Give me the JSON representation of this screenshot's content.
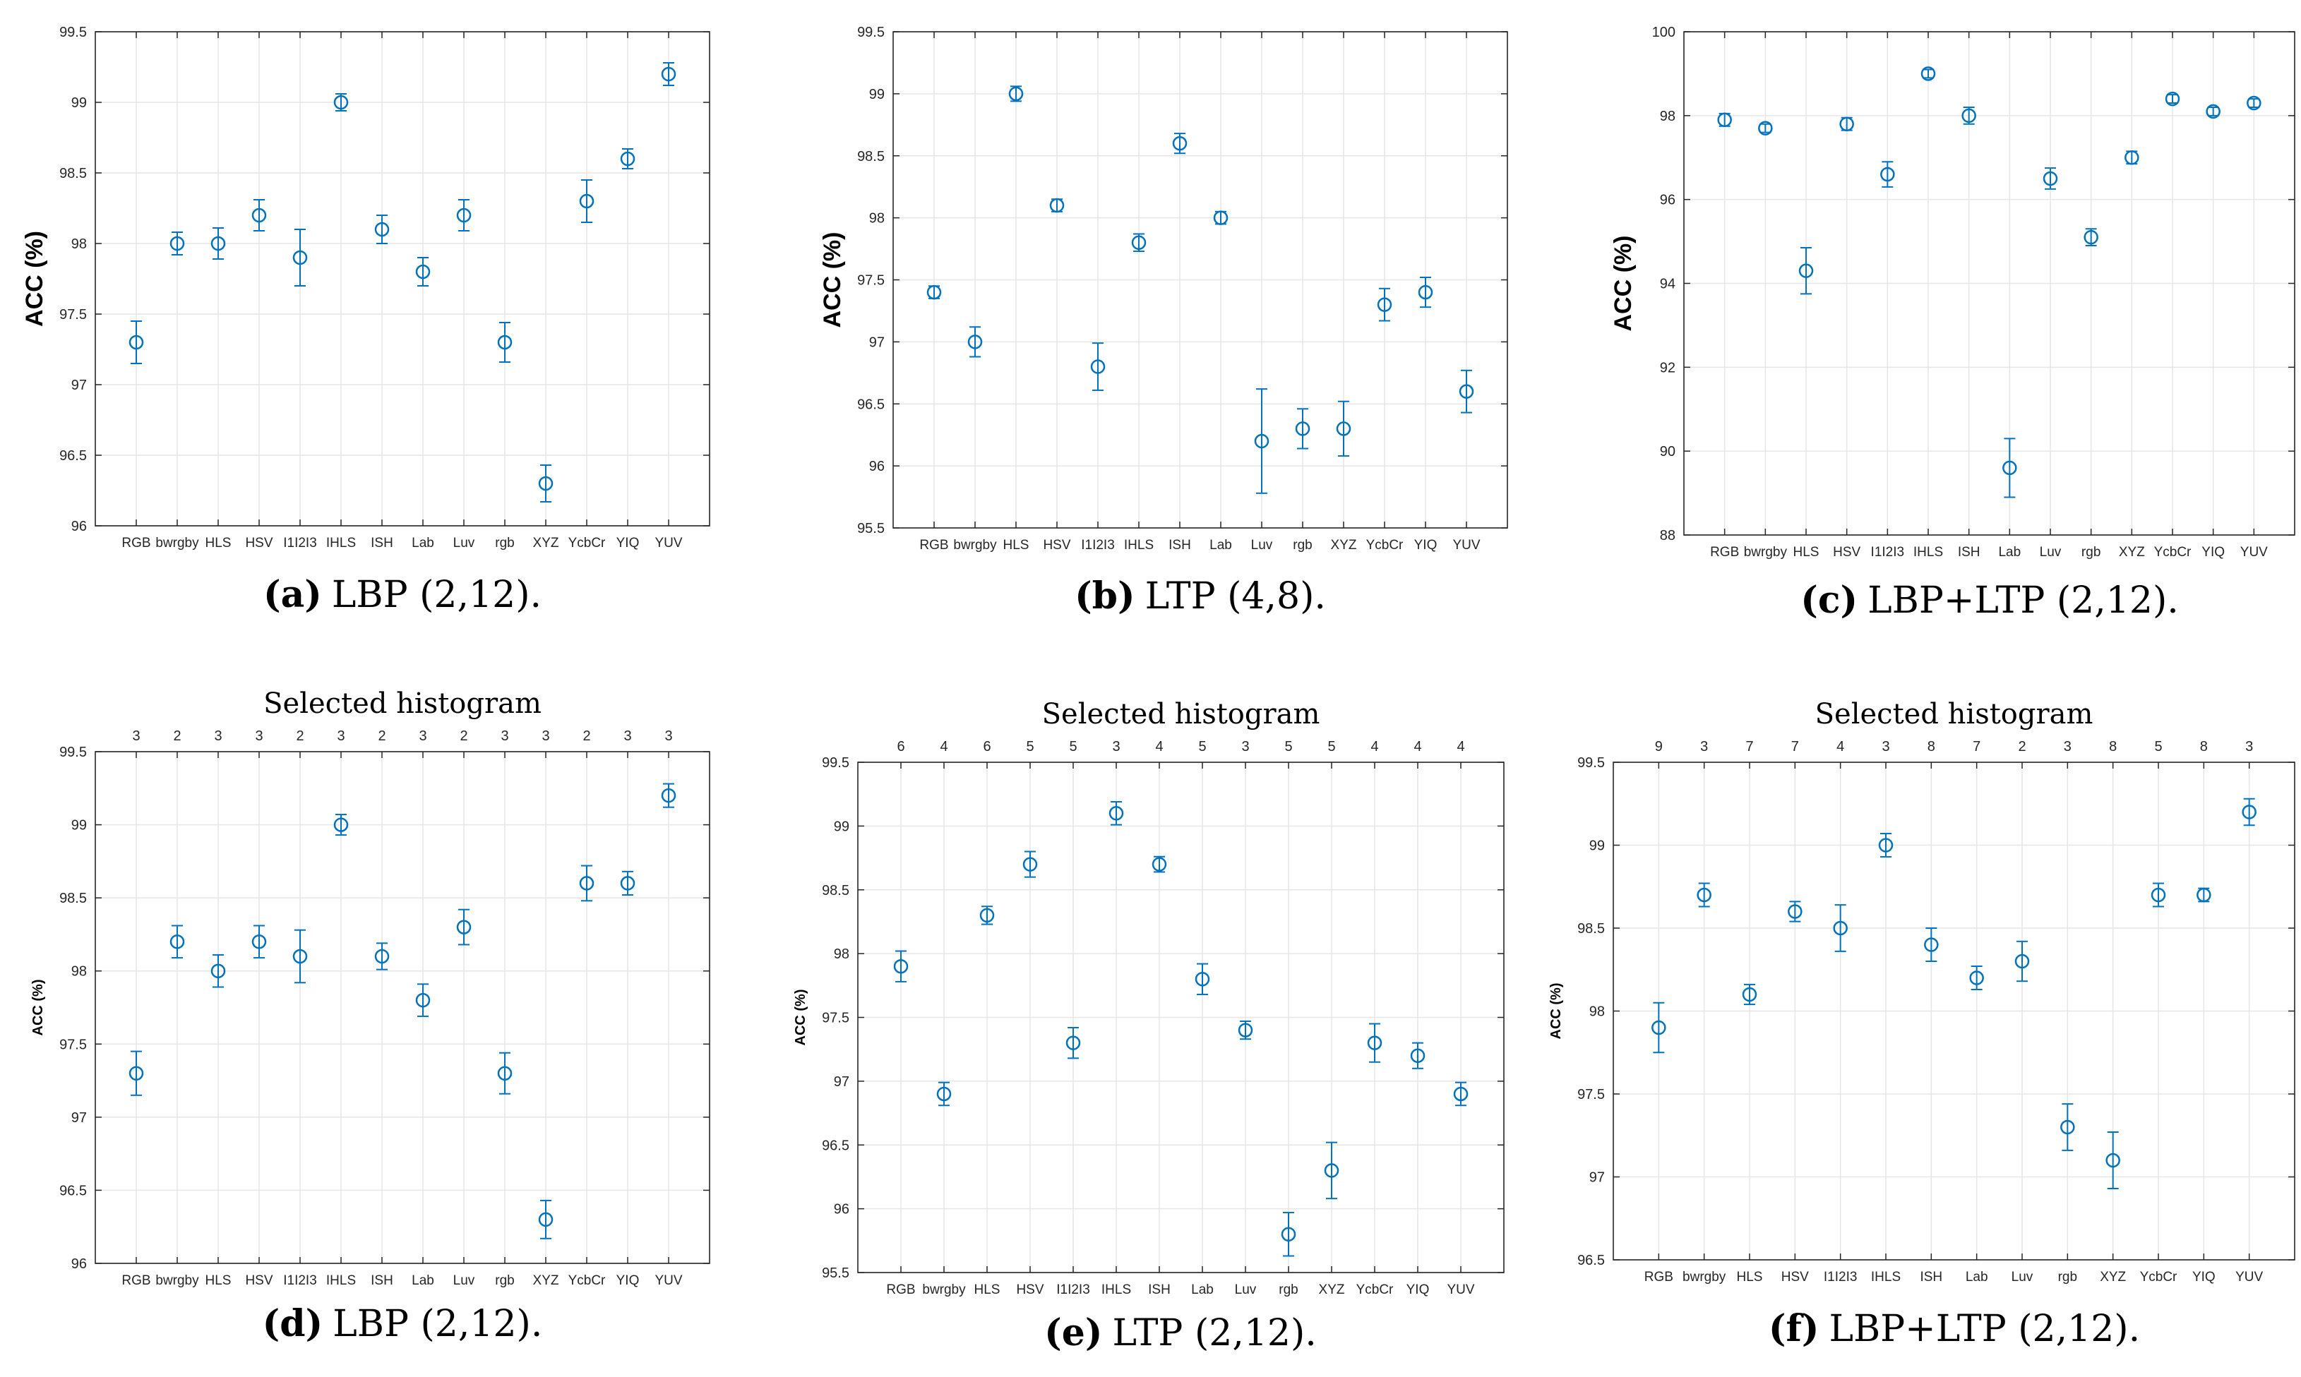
{
  "panels": [
    {
      "label": "(a)",
      "caption": "LBP (2,12).",
      "title": "",
      "chart_data": {
        "type": "scatter",
        "ylabel": "ACC (%)",
        "ylim": [
          96,
          99.5
        ],
        "yticks": [
          96,
          96.5,
          97,
          97.5,
          98,
          98.5,
          99,
          99.5
        ],
        "ytick_labels": [
          "96",
          "96.5",
          "97",
          "97.5",
          "98",
          "98.5",
          "99",
          "99.5"
        ],
        "categories": [
          "RGB",
          "bwrgby",
          "HLS",
          "HSV",
          "I1I2I3",
          "IHLS",
          "ISH",
          "Lab",
          "Luv",
          "rgb",
          "XYZ",
          "YcbCr",
          "YIQ",
          "YUV"
        ],
        "values": [
          97.3,
          98.0,
          98.0,
          98.2,
          97.9,
          99.0,
          98.1,
          97.8,
          98.2,
          97.3,
          96.3,
          98.3,
          98.6,
          99.2
        ],
        "errors": [
          0.15,
          0.08,
          0.11,
          0.11,
          0.2,
          0.06,
          0.1,
          0.1,
          0.11,
          0.14,
          0.13,
          0.15,
          0.07,
          0.08
        ],
        "top_labels": []
      }
    },
    {
      "label": "(b)",
      "caption": "LTP (4,8).",
      "title": "",
      "chart_data": {
        "type": "scatter",
        "ylabel": "ACC (%)",
        "ylim": [
          95.5,
          99.5
        ],
        "yticks": [
          95.5,
          96,
          96.5,
          97,
          97.5,
          98,
          98.5,
          99,
          99.5
        ],
        "ytick_labels": [
          "95.5",
          "96",
          "96.5",
          "97",
          "97.5",
          "98",
          "98.5",
          "99",
          "99.5"
        ],
        "categories": [
          "RGB",
          "bwrgby",
          "HLS",
          "HSV",
          "I1I2I3",
          "IHLS",
          "ISH",
          "Lab",
          "Luv",
          "rgb",
          "XYZ",
          "YcbCr",
          "YIQ",
          "YUV"
        ],
        "values": [
          97.4,
          97.0,
          99.0,
          98.1,
          96.8,
          97.8,
          98.6,
          98.0,
          96.2,
          96.3,
          96.3,
          97.3,
          97.4,
          96.6
        ],
        "errors": [
          0.05,
          0.12,
          0.06,
          0.05,
          0.19,
          0.07,
          0.08,
          0.05,
          0.42,
          0.16,
          0.22,
          0.13,
          0.12,
          0.17
        ],
        "top_labels": []
      }
    },
    {
      "label": "(c)",
      "caption": "LBP+LTP (2,12).",
      "title": "",
      "chart_data": {
        "type": "scatter",
        "ylabel": "ACC (%)",
        "ylim": [
          88,
          100
        ],
        "yticks": [
          88,
          90,
          92,
          94,
          96,
          98,
          100
        ],
        "ytick_labels": [
          "88",
          "90",
          "92",
          "94",
          "96",
          "98",
          "100"
        ],
        "categories": [
          "RGB",
          "bwrgby",
          "HLS",
          "HSV",
          "I1I2I3",
          "IHLS",
          "ISH",
          "Lab",
          "Luv",
          "rgb",
          "XYZ",
          "YcbCr",
          "YIQ",
          "YUV"
        ],
        "values": [
          97.9,
          97.7,
          94.3,
          97.8,
          96.6,
          99.0,
          98.0,
          89.6,
          96.5,
          95.1,
          97.0,
          98.4,
          98.1,
          98.3
        ],
        "errors": [
          0.15,
          0.1,
          0.55,
          0.15,
          0.3,
          0.1,
          0.2,
          0.7,
          0.25,
          0.2,
          0.15,
          0.1,
          0.1,
          0.1
        ],
        "top_labels": []
      }
    },
    {
      "label": "(d)",
      "caption": "LBP (2,12).",
      "title": "Selected histogram",
      "chart_data": {
        "type": "scatter",
        "ylabel": "ACC (%)",
        "ylim": [
          96,
          99.5
        ],
        "yticks": [
          96,
          96.5,
          97,
          97.5,
          98,
          98.5,
          99,
          99.5
        ],
        "ytick_labels": [
          "96",
          "96.5",
          "97",
          "97.5",
          "98",
          "98.5",
          "99",
          "99.5"
        ],
        "categories": [
          "RGB",
          "bwrgby",
          "HLS",
          "HSV",
          "I1I2I3",
          "IHLS",
          "ISH",
          "Lab",
          "Luv",
          "rgb",
          "XYZ",
          "YcbCr",
          "YIQ",
          "YUV"
        ],
        "values": [
          97.3,
          98.2,
          98.0,
          98.2,
          98.1,
          99.0,
          98.1,
          97.8,
          98.3,
          97.3,
          96.3,
          98.6,
          98.6,
          99.2
        ],
        "errors": [
          0.15,
          0.11,
          0.11,
          0.11,
          0.18,
          0.07,
          0.09,
          0.11,
          0.12,
          0.14,
          0.13,
          0.12,
          0.08,
          0.08
        ],
        "top_labels": [
          "3",
          "2",
          "3",
          "3",
          "2",
          "3",
          "2",
          "3",
          "2",
          "3",
          "3",
          "2",
          "3",
          "3"
        ]
      }
    },
    {
      "label": "(e)",
      "caption": "LTP (2,12).",
      "title": "Selected histogram",
      "chart_data": {
        "type": "scatter",
        "ylabel": "ACC (%)",
        "ylim": [
          95.5,
          99.5
        ],
        "yticks": [
          95.5,
          96,
          96.5,
          97,
          97.5,
          98,
          98.5,
          99,
          99.5
        ],
        "ytick_labels": [
          "95.5",
          "96",
          "96.5",
          "97",
          "97.5",
          "98",
          "98.5",
          "99",
          "99.5"
        ],
        "categories": [
          "RGB",
          "bwrgby",
          "HLS",
          "HSV",
          "I1I2I3",
          "IHLS",
          "ISH",
          "Lab",
          "Luv",
          "rgb",
          "XYZ",
          "YcbCr",
          "YIQ",
          "YUV"
        ],
        "values": [
          97.9,
          96.9,
          98.3,
          98.7,
          97.3,
          99.1,
          98.7,
          97.8,
          97.4,
          95.8,
          96.3,
          97.3,
          97.2,
          96.9
        ],
        "errors": [
          0.12,
          0.09,
          0.07,
          0.1,
          0.12,
          0.09,
          0.06,
          0.12,
          0.07,
          0.17,
          0.22,
          0.15,
          0.1,
          0.09
        ],
        "top_labels": [
          "6",
          "4",
          "6",
          "5",
          "5",
          "3",
          "4",
          "5",
          "3",
          "5",
          "5",
          "4",
          "4",
          "4"
        ]
      }
    },
    {
      "label": "(f)",
      "caption": "LBP+LTP (2,12).",
      "title": "Selected histogram",
      "chart_data": {
        "type": "scatter",
        "ylabel": "ACC (%)",
        "ylim": [
          96.5,
          99.5
        ],
        "yticks": [
          96.5,
          97,
          97.5,
          98,
          98.5,
          99,
          99.5
        ],
        "ytick_labels": [
          "96.5",
          "97",
          "97.5",
          "98",
          "98.5",
          "99",
          "99.5"
        ],
        "categories": [
          "RGB",
          "bwrgby",
          "HLS",
          "HSV",
          "I1I2I3",
          "IHLS",
          "ISH",
          "Lab",
          "Luv",
          "rgb",
          "XYZ",
          "YcbCr",
          "YIQ",
          "YUV"
        ],
        "values": [
          97.9,
          98.7,
          98.1,
          98.6,
          98.5,
          99.0,
          98.4,
          98.2,
          98.3,
          97.3,
          97.1,
          98.7,
          98.7,
          99.2
        ],
        "errors": [
          0.15,
          0.07,
          0.06,
          0.06,
          0.14,
          0.07,
          0.1,
          0.07,
          0.12,
          0.14,
          0.17,
          0.07,
          0.04,
          0.08
        ],
        "top_labels": [
          "9",
          "3",
          "7",
          "7",
          "4",
          "3",
          "8",
          "7",
          "2",
          "3",
          "8",
          "5",
          "8",
          "3"
        ]
      }
    }
  ],
  "colors": {
    "marker": "#0072bd",
    "grid": "#e6e6e6",
    "axis": "#262626",
    "text": "#000000"
  }
}
